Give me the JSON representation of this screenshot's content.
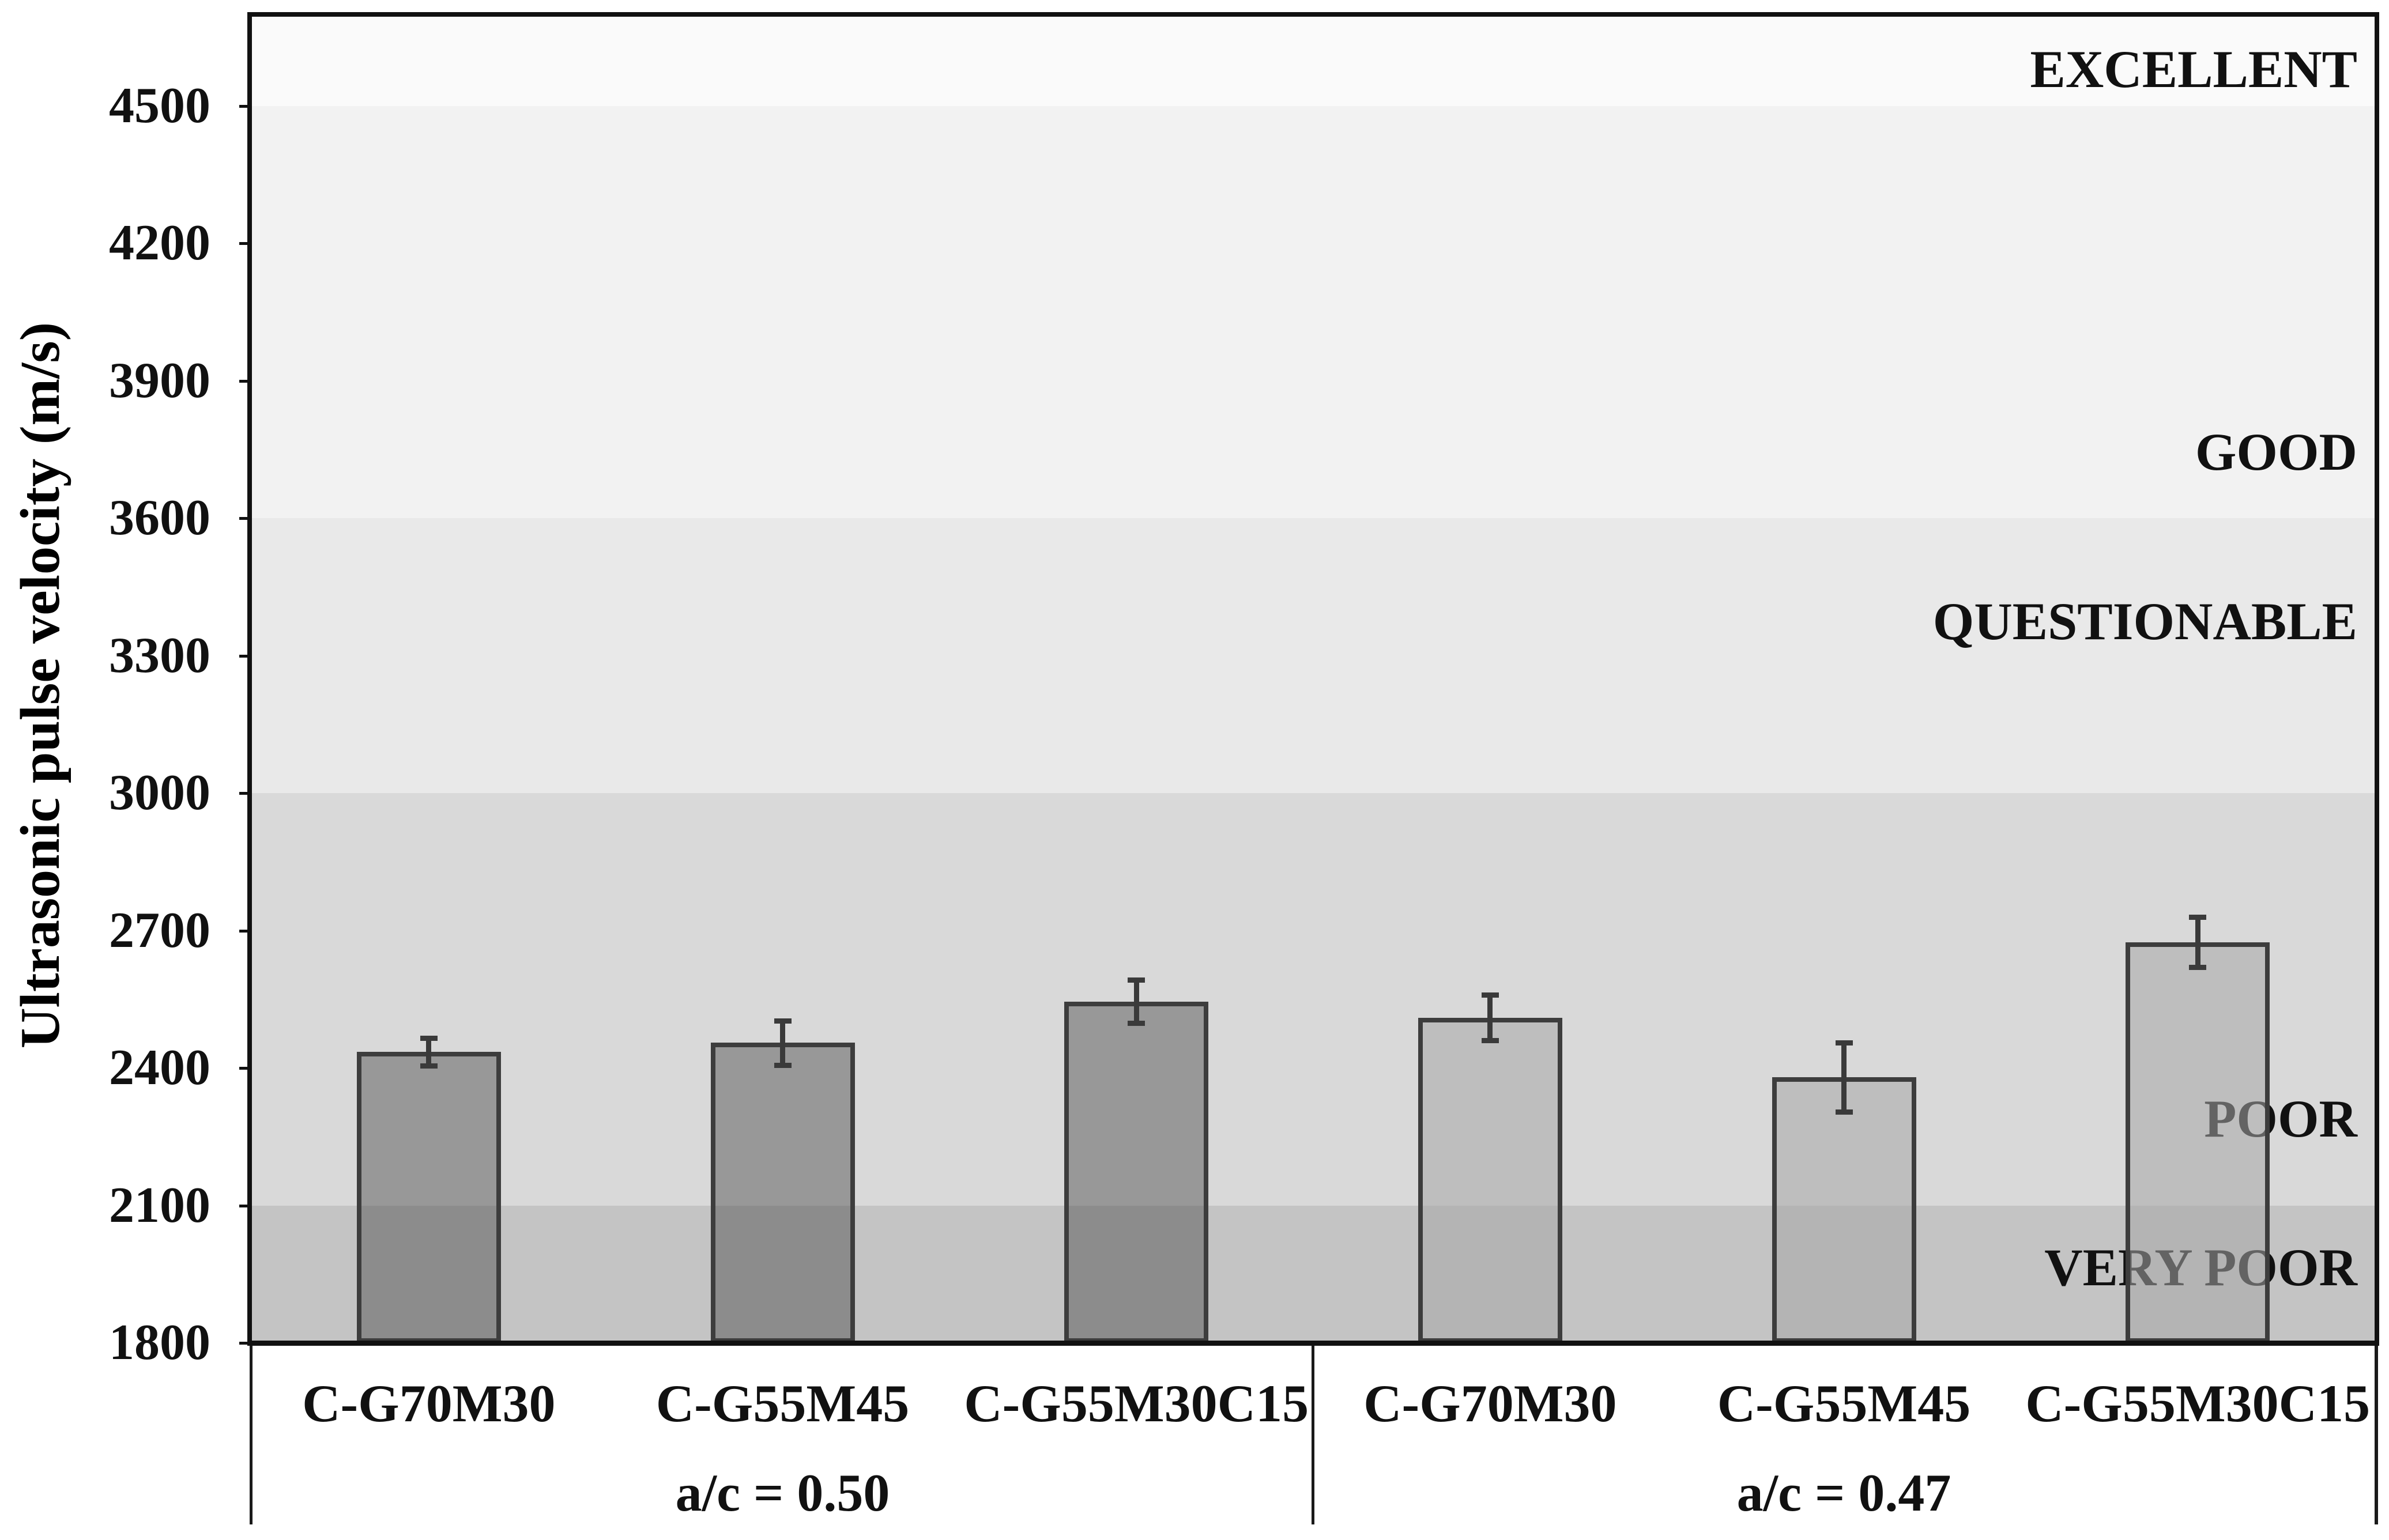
{
  "figure": {
    "y_axis_title": "Ultrasonic pulse velocity (m/s)",
    "background": "#ffffff",
    "frame_color": "#111111"
  },
  "chart_data": {
    "type": "bar",
    "title": "",
    "xlabel": "",
    "ylabel": "Ultrasonic pulse velocity (m/s)",
    "ylim": [
      1800,
      4700
    ],
    "yticks": [
      1800,
      2100,
      2400,
      2700,
      3000,
      3300,
      3600,
      3900,
      4200,
      4500
    ],
    "grid": "off",
    "legend": "none",
    "error_color": "#3a3a3a",
    "groups": [
      {
        "label": "a/c = 0.50",
        "bar_fill": "rgba(62,62,62,0.42)",
        "bar_border": "#3d3d3d",
        "bars": [
          {
            "category": "C-G70M30",
            "value": 2435,
            "error": 30
          },
          {
            "category": "C-G55M45",
            "value": 2455,
            "error": 48
          },
          {
            "category": "C-G55M30C15",
            "value": 2545,
            "error": 47
          }
        ]
      },
      {
        "label": "a/c = 0.47",
        "bar_fill": "rgba(168,168,168,0.55)",
        "bar_border": "#3d3d3d",
        "bars": [
          {
            "category": "C-G70M30",
            "value": 2510,
            "error": 50
          },
          {
            "category": "C-G55M45",
            "value": 2380,
            "error": 75
          },
          {
            "category": "C-G55M30C15",
            "value": 2675,
            "error": 55
          }
        ]
      }
    ],
    "bands": [
      {
        "label": "EXCELLENT",
        "from": 4500,
        "to": 4700,
        "color": "#fafafa",
        "label_v": 4580
      },
      {
        "label": "GOOD",
        "from": 3600,
        "to": 4500,
        "color": "#f2f2f2",
        "label_v": 3745
      },
      {
        "label": "QUESTIONABLE",
        "from": 3000,
        "to": 3600,
        "color": "#e9e9e9",
        "label_v": 3375
      },
      {
        "label": "POOR",
        "from": 2100,
        "to": 3000,
        "color": "#d9d9d9",
        "label_v": 2290
      },
      {
        "label": "VERY POOR",
        "from": 1800,
        "to": 2100,
        "color": "#c4c4c4",
        "label_v": 1965
      }
    ]
  }
}
